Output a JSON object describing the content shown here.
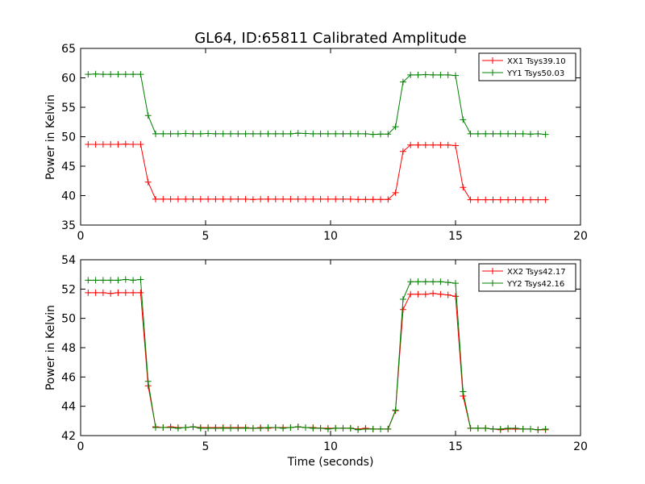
{
  "chart_data": [
    {
      "type": "line",
      "title": "GL64, ID:65811 Calibrated Amplitude",
      "xlabel": "",
      "ylabel": "Power in Kelvin",
      "xlim": [
        0,
        20
      ],
      "ylim": [
        35,
        65
      ],
      "xticks": [
        "0",
        "5",
        "10",
        "15",
        "20"
      ],
      "yticks": [
        "35",
        "40",
        "45",
        "50",
        "55",
        "60",
        "65"
      ],
      "grid": false,
      "legend_position": "top-right",
      "x": [
        0.3,
        0.6,
        0.9,
        1.2,
        1.5,
        1.8,
        2.1,
        2.4,
        2.7,
        3.0,
        3.3,
        3.6,
        3.9,
        4.2,
        4.5,
        4.8,
        5.1,
        5.4,
        5.7,
        6.0,
        6.3,
        6.6,
        6.9,
        7.2,
        7.5,
        7.8,
        8.1,
        8.4,
        8.7,
        9.0,
        9.3,
        9.6,
        9.9,
        10.2,
        10.5,
        10.8,
        11.1,
        11.4,
        11.7,
        12.0,
        12.3,
        12.6,
        12.9,
        13.2,
        13.5,
        13.8,
        14.1,
        14.4,
        14.7,
        15.0,
        15.3,
        15.6,
        15.9,
        16.2,
        16.5,
        16.8,
        17.1,
        17.4,
        17.7,
        18.0,
        18.3,
        18.6
      ],
      "series": [
        {
          "name": "XX1 Tsys39.10",
          "color": "#ff0000",
          "values": [
            48.7,
            48.7,
            48.7,
            48.7,
            48.7,
            48.75,
            48.7,
            48.7,
            42.3,
            39.4,
            39.4,
            39.4,
            39.4,
            39.4,
            39.4,
            39.4,
            39.4,
            39.4,
            39.4,
            39.4,
            39.4,
            39.4,
            39.35,
            39.4,
            39.4,
            39.4,
            39.4,
            39.4,
            39.4,
            39.4,
            39.4,
            39.4,
            39.4,
            39.4,
            39.4,
            39.4,
            39.35,
            39.35,
            39.35,
            39.35,
            39.35,
            40.5,
            47.5,
            48.6,
            48.6,
            48.6,
            48.6,
            48.6,
            48.6,
            48.5,
            41.4,
            39.3,
            39.3,
            39.3,
            39.3,
            39.3,
            39.3,
            39.3,
            39.3,
            39.3,
            39.3,
            39.3
          ]
        },
        {
          "name": "YY1 Tsys50.03",
          "color": "#008000",
          "values": [
            60.6,
            60.65,
            60.6,
            60.6,
            60.6,
            60.6,
            60.6,
            60.6,
            53.6,
            50.5,
            50.5,
            50.5,
            50.5,
            50.55,
            50.5,
            50.5,
            50.55,
            50.5,
            50.5,
            50.5,
            50.5,
            50.5,
            50.5,
            50.5,
            50.5,
            50.5,
            50.5,
            50.5,
            50.6,
            50.55,
            50.5,
            50.5,
            50.5,
            50.5,
            50.5,
            50.5,
            50.5,
            50.5,
            50.4,
            50.45,
            50.45,
            51.7,
            59.3,
            60.5,
            60.5,
            60.55,
            60.5,
            60.5,
            60.5,
            60.4,
            52.9,
            50.5,
            50.5,
            50.5,
            50.5,
            50.5,
            50.5,
            50.5,
            50.5,
            50.45,
            50.5,
            50.4
          ]
        }
      ]
    },
    {
      "type": "line",
      "title": "",
      "xlabel": "Time (seconds)",
      "ylabel": "Power in Kelvin",
      "xlim": [
        0,
        20
      ],
      "ylim": [
        42,
        54
      ],
      "xticks": [
        "0",
        "5",
        "10",
        "15",
        "20"
      ],
      "yticks": [
        "42",
        "44",
        "46",
        "48",
        "50",
        "52",
        "54"
      ],
      "grid": false,
      "legend_position": "top-right",
      "x": [
        0.3,
        0.6,
        0.9,
        1.2,
        1.5,
        1.8,
        2.1,
        2.4,
        2.7,
        3.0,
        3.3,
        3.6,
        3.9,
        4.2,
        4.5,
        4.8,
        5.1,
        5.4,
        5.7,
        6.0,
        6.3,
        6.6,
        6.9,
        7.2,
        7.5,
        7.8,
        8.1,
        8.4,
        8.7,
        9.0,
        9.3,
        9.6,
        9.9,
        10.2,
        10.5,
        10.8,
        11.1,
        11.4,
        11.7,
        12.0,
        12.3,
        12.6,
        12.9,
        13.2,
        13.5,
        13.8,
        14.1,
        14.4,
        14.7,
        15.0,
        15.3,
        15.6,
        15.9,
        16.2,
        16.5,
        16.8,
        17.1,
        17.4,
        17.7,
        18.0,
        18.3,
        18.6
      ],
      "series": [
        {
          "name": "XX2 Tsys42.17",
          "color": "#ff0000",
          "values": [
            51.75,
            51.75,
            51.75,
            51.7,
            51.75,
            51.75,
            51.75,
            51.75,
            45.4,
            42.6,
            42.55,
            42.6,
            42.55,
            42.55,
            42.6,
            42.55,
            42.55,
            42.55,
            42.55,
            42.55,
            42.55,
            42.55,
            42.5,
            42.55,
            42.5,
            42.55,
            42.55,
            42.55,
            42.6,
            42.55,
            42.55,
            42.5,
            42.5,
            42.5,
            42.5,
            42.5,
            42.45,
            42.5,
            42.45,
            42.45,
            42.45,
            43.7,
            50.6,
            51.65,
            51.65,
            51.65,
            51.7,
            51.65,
            51.6,
            51.5,
            44.7,
            42.5,
            42.5,
            42.5,
            42.45,
            42.4,
            42.45,
            42.45,
            42.45,
            42.45,
            42.4,
            42.4
          ]
        },
        {
          "name": "YY2 Tsys42.16",
          "color": "#008000",
          "values": [
            52.6,
            52.6,
            52.6,
            52.6,
            52.6,
            52.65,
            52.6,
            52.65,
            45.7,
            42.55,
            42.55,
            42.55,
            42.5,
            42.55,
            42.6,
            42.5,
            42.5,
            42.5,
            42.5,
            42.5,
            42.5,
            42.5,
            42.5,
            42.5,
            42.55,
            42.55,
            42.5,
            42.55,
            42.6,
            42.55,
            42.5,
            42.5,
            42.45,
            42.5,
            42.5,
            42.5,
            42.4,
            42.45,
            42.45,
            42.45,
            42.45,
            43.75,
            51.3,
            52.5,
            52.5,
            52.5,
            52.5,
            52.5,
            52.45,
            52.4,
            45.0,
            42.5,
            42.5,
            42.5,
            42.45,
            42.45,
            42.5,
            42.5,
            42.45,
            42.45,
            42.4,
            42.45
          ]
        }
      ]
    }
  ]
}
